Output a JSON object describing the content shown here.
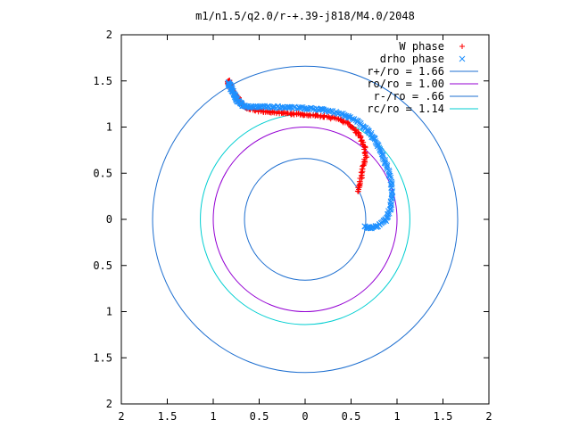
{
  "chart_data": {
    "type": "scatter",
    "title": "m1/n1.5/q2.0/r-+.39-j818/M4.0/2048",
    "xlabel": "",
    "ylabel": "",
    "xlim": [
      -2,
      2
    ],
    "ylim": [
      -2,
      2
    ],
    "x_tick_values": [
      -2,
      -1.5,
      -1,
      -0.5,
      0,
      0.5,
      1,
      1.5,
      2
    ],
    "x_tick_labels": [
      "2",
      "1.5",
      "1",
      "0.5",
      "0",
      "0.5",
      "1",
      "1.5",
      "2"
    ],
    "y_tick_values": [
      2,
      1.5,
      1,
      0.5,
      0,
      -0.5,
      -1,
      -1.5,
      -2
    ],
    "y_tick_labels": [
      "2",
      "1.5",
      "1",
      "0.5",
      "0",
      "0.5",
      "1",
      "1.5",
      "2"
    ],
    "grid": false,
    "legend_position": "top-right",
    "series": [
      {
        "name": "W phase",
        "kind": "points",
        "marker": "+",
        "color": "#ff0000",
        "x": [
          0.58,
          0.6,
          0.63,
          0.66,
          0.64,
          0.6,
          0.54,
          0.47,
          0.38,
          0.28,
          0.18,
          0.08,
          -0.02,
          -0.12,
          -0.22,
          -0.32,
          -0.42,
          -0.52,
          -0.6,
          -0.66,
          -0.7,
          -0.73,
          -0.76,
          -0.79,
          -0.82,
          -0.84,
          -0.83
        ],
        "y": [
          0.3,
          0.42,
          0.55,
          0.68,
          0.8,
          0.9,
          0.98,
          1.04,
          1.08,
          1.1,
          1.12,
          1.13,
          1.14,
          1.14,
          1.15,
          1.16,
          1.17,
          1.18,
          1.2,
          1.22,
          1.26,
          1.31,
          1.36,
          1.41,
          1.45,
          1.48,
          1.5
        ]
      },
      {
        "name": "drho phase",
        "kind": "points",
        "marker": "x",
        "color": "#1e90ff",
        "x": [
          0.65,
          0.72,
          0.8,
          0.88,
          0.93,
          0.95,
          0.93,
          0.88,
          0.82,
          0.76,
          0.69,
          0.6,
          0.5,
          0.4,
          0.28,
          0.16,
          0.04,
          -0.08,
          -0.2,
          -0.32,
          -0.44,
          -0.54,
          -0.62,
          -0.68,
          -0.72,
          -0.75,
          -0.78,
          -0.8,
          -0.82,
          -0.83
        ],
        "y": [
          -0.08,
          -0.09,
          -0.07,
          0.0,
          0.12,
          0.28,
          0.45,
          0.6,
          0.74,
          0.86,
          0.96,
          1.04,
          1.1,
          1.14,
          1.17,
          1.19,
          1.2,
          1.21,
          1.21,
          1.22,
          1.22,
          1.22,
          1.22,
          1.24,
          1.27,
          1.31,
          1.36,
          1.41,
          1.45,
          1.48
        ]
      },
      {
        "name": "r+/ro = 1.66",
        "kind": "circle",
        "radius": 1.66,
        "color": "#1e6fd0"
      },
      {
        "name": "ro/ro = 1.00",
        "kind": "circle",
        "radius": 1.0,
        "color": "#9400d3"
      },
      {
        "name": "r-/ro = .66",
        "kind": "circle",
        "radius": 0.66,
        "color": "#1e6fd0"
      },
      {
        "name": "rc/ro = 1.14",
        "kind": "circle",
        "radius": 1.14,
        "color": "#00ced1"
      }
    ]
  }
}
